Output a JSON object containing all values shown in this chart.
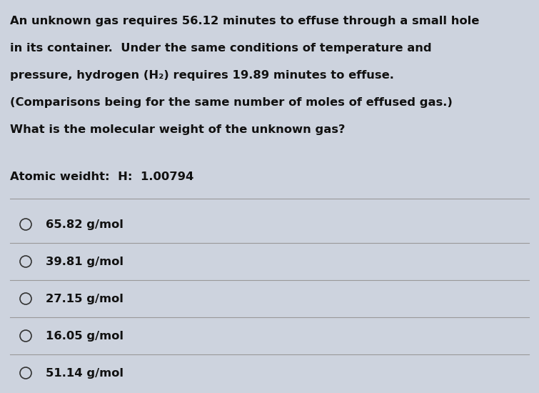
{
  "background_color": "#cdd3de",
  "question_text_lines": [
    "An unknown gas requires 56.12 minutes to effuse through a small hole",
    "in its container.  Under the same conditions of temperature and",
    "pressure, hydrogen (H₂) requires 19.89 minutes to effuse.",
    "(Comparisons being for the same number of moles of effused gas.)",
    "What is the molecular weight of the unknown gas?"
  ],
  "atomic_weight_line": "Atomic weidht:  H:  1.00794",
  "choices": [
    "65.82 g/mol",
    "39.81 g/mol",
    "27.15 g/mol",
    "16.05 g/mol",
    "51.14 g/mol"
  ],
  "text_color": "#111111",
  "line_color": "#999999",
  "circle_color": "#333333",
  "question_fontsize": 11.8,
  "atomic_fontsize": 11.8,
  "choice_fontsize": 11.8,
  "fig_width": 7.55,
  "fig_height": 5.5,
  "dpi": 100
}
